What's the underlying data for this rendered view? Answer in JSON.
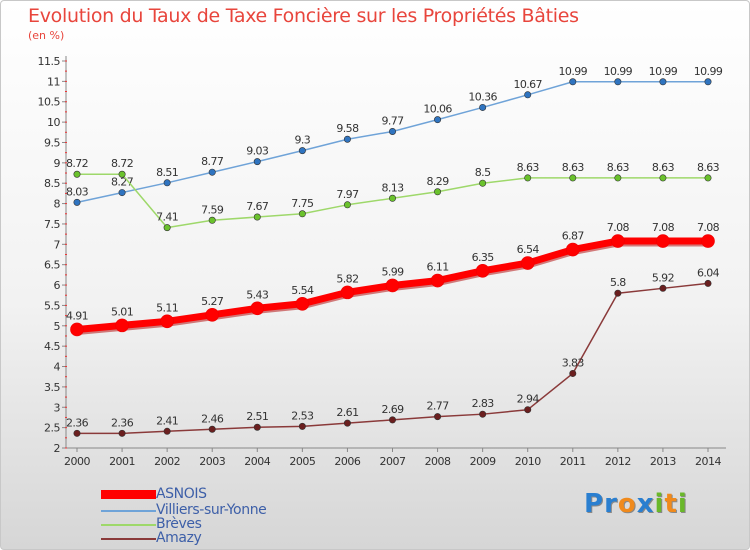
{
  "title": "Evolution du Taux de Taxe Foncière sur les Propriétés Bâties",
  "unit_label": "(en %)",
  "logo": {
    "text": "Proxiti",
    "letters": [
      "P",
      "r",
      "o",
      "x",
      "i",
      "t",
      "i"
    ],
    "colors": [
      "#2a7fd0",
      "#2a7fd0",
      "#f08a1c",
      "#2a7fd0",
      "#6ab82a",
      "#f08a1c",
      "#6ab82a"
    ]
  },
  "chart_data": {
    "type": "line",
    "x": [
      2000,
      2001,
      2002,
      2003,
      2004,
      2005,
      2006,
      2007,
      2008,
      2009,
      2010,
      2011,
      2012,
      2013,
      2014
    ],
    "xlabels": [
      "2000",
      "2001",
      "2002",
      "2003",
      "2004",
      "2005",
      "2006",
      "2007",
      "2008",
      "2009",
      "2010",
      "2011",
      "2012",
      "2013",
      "2014"
    ],
    "ylim": [
      2,
      11.5
    ],
    "yticks": [
      "2",
      "2.5",
      "3",
      "3.5",
      "4",
      "4.5",
      "5",
      "5.5",
      "6",
      "6.5",
      "7",
      "7.5",
      "8",
      "8.5",
      "9",
      "9.5",
      "10",
      "10.5",
      "11",
      "11.5"
    ],
    "grid": false,
    "legend_position": "bottom-left",
    "series": [
      {
        "name": "ASNOIS",
        "color": "#ff0000",
        "marker_color": "#ff0000",
        "width": 7,
        "r": 6.5,
        "values": [
          4.91,
          5.01,
          5.11,
          5.27,
          5.43,
          5.54,
          5.82,
          5.99,
          6.11,
          6.35,
          6.54,
          6.87,
          7.08,
          7.08,
          7.08
        ],
        "labels": [
          "4.91",
          "5.01",
          "5.11",
          "5.27",
          "5.43",
          "5.54",
          "5.82",
          "5.99",
          "6.11",
          "6.35",
          "6.54",
          "6.87",
          "7.08",
          "7.08",
          "7.08"
        ]
      },
      {
        "name": "Villiers-sur-Yonne",
        "color": "#6fa3d8",
        "marker_color": "#2f74c0",
        "width": 1.5,
        "r": 3.2,
        "values": [
          8.03,
          8.27,
          8.51,
          8.77,
          9.03,
          9.3,
          9.58,
          9.77,
          10.06,
          10.36,
          10.67,
          10.99,
          10.99,
          10.99,
          10.99
        ],
        "labels": [
          "8.03",
          "8.27",
          "8.51",
          "8.77",
          "9.03",
          "9.3",
          "9.58",
          "9.77",
          "10.06",
          "10.36",
          "10.67",
          "10.99",
          "10.99",
          "10.99",
          "10.99"
        ]
      },
      {
        "name": "Brèves",
        "color": "#9ed86a",
        "marker_color": "#6ac22c",
        "width": 1.5,
        "r": 3.2,
        "values": [
          8.72,
          8.72,
          7.41,
          7.59,
          7.67,
          7.75,
          7.97,
          8.13,
          8.29,
          8.5,
          8.63,
          8.63,
          8.63,
          8.63,
          8.63
        ],
        "labels": [
          "8.72",
          "8.72",
          "7.41",
          "7.59",
          "7.67",
          "7.75",
          "7.97",
          "8.13",
          "8.29",
          "8.5",
          "8.63",
          "8.63",
          "8.63",
          "8.63",
          "8.63"
        ]
      },
      {
        "name": "Amazy",
        "color": "#8a3a3a",
        "marker_color": "#6b1f1f",
        "width": 1.5,
        "r": 3.2,
        "values": [
          2.36,
          2.36,
          2.41,
          2.46,
          2.51,
          2.53,
          2.61,
          2.69,
          2.77,
          2.83,
          2.94,
          3.83,
          5.8,
          5.92,
          6.04
        ],
        "labels": [
          "2.36",
          "2.36",
          "2.41",
          "2.46",
          "2.51",
          "2.53",
          "2.61",
          "2.69",
          "2.77",
          "2.83",
          "2.94",
          "3.83",
          "5.8",
          "5.92",
          "6.04"
        ]
      }
    ]
  }
}
